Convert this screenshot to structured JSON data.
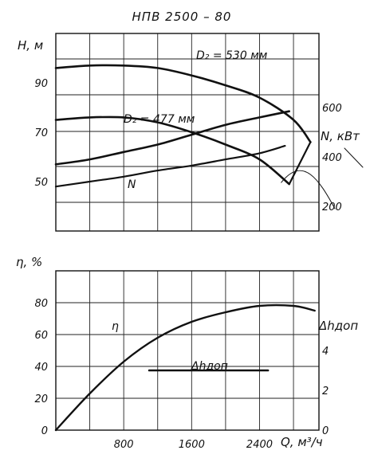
{
  "chart_data": {
    "type": "line",
    "title": "НПВ   2500 – 80",
    "x_axis": {
      "label": "Q, м³/ч",
      "ticks": [
        0,
        800,
        1600,
        2400
      ],
      "range": [
        0,
        3100
      ],
      "grid_lines": [
        0,
        400,
        800,
        1200,
        1600,
        2000,
        2400,
        2800
      ]
    },
    "head_axis": {
      "label": "H, м",
      "ticks": [
        50,
        70,
        90
      ],
      "range": [
        30,
        110
      ]
    },
    "power_axis": {
      "label": "N, кВт",
      "ticks": [
        200,
        400,
        600
      ],
      "range": [
        100,
        900
      ]
    },
    "efficiency_axis": {
      "label": "η, %",
      "ticks": [
        0,
        20,
        40,
        60,
        80
      ],
      "range": [
        0,
        100
      ]
    },
    "npsh_axis": {
      "label": "Δhдоп",
      "ticks": [
        0,
        2,
        4
      ],
      "range": [
        0,
        8
      ]
    },
    "series": [
      {
        "name": "D₂ = 530 мм",
        "axis": "head",
        "x": [
          0,
          400,
          800,
          1200,
          1600,
          2000,
          2400,
          2800,
          3000
        ],
        "values": [
          96,
          97,
          97,
          96,
          93,
          89,
          84,
          75,
          66
        ]
      },
      {
        "name": "D₂ = 477 мм",
        "axis": "head",
        "x": [
          0,
          400,
          800,
          1200,
          1600,
          2000,
          2400,
          2750
        ],
        "values": [
          75,
          76,
          76,
          74,
          70,
          65,
          59,
          49
        ]
      },
      {
        "name": "N",
        "axis": "power",
        "x": [
          0,
          400,
          800,
          1200,
          1600,
          2000,
          2400,
          2750
        ],
        "values": [
          370,
          390,
          420,
          450,
          490,
          530,
          560,
          585
        ]
      },
      {
        "name": "",
        "axis": "power",
        "x": [
          0,
          400,
          800,
          1200,
          1600,
          2000,
          2400,
          2700
        ],
        "values": [
          280,
          300,
          320,
          345,
          365,
          390,
          415,
          445
        ]
      },
      {
        "name": "η",
        "axis": "efficiency",
        "x": [
          0,
          400,
          800,
          1200,
          1600,
          2000,
          2400,
          2800,
          3050
        ],
        "values": [
          0,
          23,
          43,
          58,
          68,
          74,
          78,
          78,
          75
        ]
      },
      {
        "name": "Δhдоп",
        "axis": "npsh",
        "x": [
          1100,
          2500
        ],
        "values": [
          3,
          3
        ]
      }
    ],
    "grid": true
  }
}
